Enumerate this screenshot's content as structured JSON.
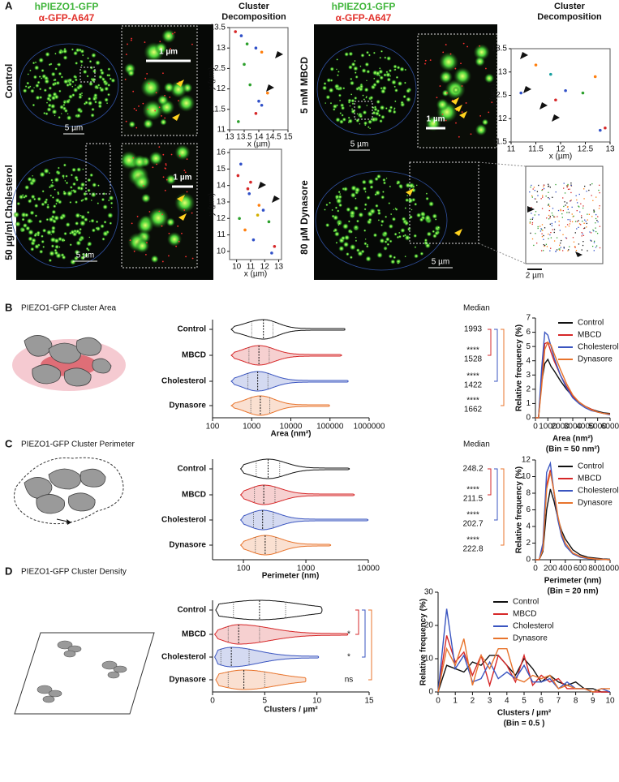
{
  "panel_a": {
    "label": "A",
    "stain_1": "hPIEZO1-GFP",
    "stain_2": "α-GFP-A647",
    "decomp_title": "Cluster Decomposition",
    "conditions": [
      "Control",
      "50 µg/ml Cholesterol",
      "5 mM MBCD",
      "80 µM Dynasore"
    ],
    "scale_5": "5 µm",
    "scale_1": "1 µm",
    "scale_2": "2 µm"
  },
  "chart_data": [
    {
      "type": "scatter",
      "xlabel": "x (µm)",
      "ylabel": "y (µm)",
      "xlim": [
        13,
        15
      ],
      "ylim": [
        11,
        13.5
      ],
      "xticks": [
        13,
        13.5,
        14,
        14.5,
        15
      ],
      "yticks": [
        11,
        11.5,
        12,
        12.5,
        13,
        13.5
      ],
      "x": [
        13.2,
        13.4,
        13.6,
        13.9,
        14.1,
        13.5,
        13.7,
        14.0,
        14.1,
        13.9,
        14.3,
        13.3
      ],
      "y": [
        13.4,
        13.3,
        13.1,
        13.0,
        12.9,
        12.6,
        12.1,
        11.7,
        11.6,
        11.4,
        11.9,
        11.2
      ],
      "colors": [
        "#d62728",
        "#3050c8",
        "#2ca02c",
        "#3050c8",
        "#ff7f0e",
        "#2ca02c",
        "#2ca02c",
        "#3050c8",
        "#3050c8",
        "#d62728",
        "#ff7f0e",
        "#2ca02c"
      ]
    },
    {
      "type": "scatter",
      "xlabel": "x (µm)",
      "ylabel": "y (µm)",
      "xlim": [
        9.5,
        13.2
      ],
      "ylim": [
        9.5,
        16.2
      ],
      "xticks": [
        10,
        11,
        12,
        13
      ],
      "yticks": [
        10,
        11,
        12,
        13,
        14,
        15,
        16
      ],
      "x": [
        10.3,
        10.1,
        11.0,
        10.8,
        10.9,
        11.6,
        11.9,
        11.5,
        10.6,
        11.2,
        12.3,
        12.5,
        12.7,
        10.2
      ],
      "y": [
        15.3,
        14.6,
        14.2,
        13.8,
        13.5,
        12.8,
        12.5,
        12.2,
        11.3,
        10.7,
        11.8,
        9.9,
        10.3,
        12.0
      ],
      "colors": [
        "#3050c8",
        "#d62728",
        "#d62728",
        "#d62728",
        "#3050c8",
        "#ff7f0e",
        "#3050c8",
        "#d4b000",
        "#ff7f0e",
        "#3050c8",
        "#2ca02c",
        "#3050c8",
        "#d62728",
        "#2ca02c"
      ]
    },
    {
      "type": "scatter",
      "xlabel": "x (µm)",
      "ylabel": "y (µm)",
      "xlim": [
        11,
        13
      ],
      "ylim": [
        11.5,
        13.5
      ],
      "xticks": [
        11,
        11.5,
        12,
        12.5,
        13
      ],
      "yticks": [
        11.5,
        12,
        12.5,
        13,
        13.5
      ],
      "x": [
        11.5,
        11.8,
        11.2,
        12.7,
        12.1,
        12.45,
        11.9,
        12.9,
        12.8
      ],
      "y": [
        13.15,
        12.95,
        12.55,
        12.9,
        12.6,
        12.55,
        12.4,
        11.8,
        11.75
      ],
      "colors": [
        "#ff7f0e",
        "#17a0a0",
        "#3050c8",
        "#ff7f0e",
        "#3050c8",
        "#2ca02c",
        "#d62728",
        "#d62728",
        "#3050c8"
      ]
    },
    {
      "type": "violin",
      "panel_label": "B",
      "title": "PIEZO1-GFP Cluster Area",
      "xlabel": "Area (nm²)",
      "xscale": "log",
      "xlim": [
        100,
        1000000
      ],
      "xticks": [
        100,
        1000,
        10000,
        100000,
        1000000
      ],
      "categories": [
        "Control",
        "MBCD",
        "Cholesterol",
        "Dynasore"
      ],
      "colors": [
        "#111111",
        "#d62728",
        "#3a55c0",
        "#e8742c"
      ],
      "stats": {
        "min": [
          300,
          300,
          300,
          300
        ],
        "q1": [
          1000,
          850,
          800,
          950
        ],
        "median": [
          1993,
          1528,
          1422,
          1662
        ],
        "q3": [
          3500,
          2800,
          2600,
          2900
        ],
        "max": [
          250000,
          200000,
          300000,
          100000
        ]
      },
      "median_heading": "Median",
      "significance": [
        null,
        "****",
        "****",
        "****"
      ]
    },
    {
      "type": "violin",
      "panel_label": "C",
      "title": "PIEZO1-GFP  Cluster Perimeter",
      "xlabel": "Perimeter (nm)",
      "xscale": "log",
      "xlim": [
        32,
        10000
      ],
      "xticks": [
        100,
        1000,
        10000
      ],
      "categories": [
        "Control",
        "MBCD",
        "Cholesterol",
        "Dynasore"
      ],
      "colors": [
        "#111111",
        "#d62728",
        "#3a55c0",
        "#e8742c"
      ],
      "stats": {
        "min": [
          90,
          90,
          90,
          90
        ],
        "q1": [
          160,
          150,
          145,
          155
        ],
        "median": [
          248.2,
          211.5,
          202.7,
          222.8
        ],
        "q3": [
          380,
          320,
          300,
          330
        ],
        "max": [
          5000,
          6000,
          10000,
          2500
        ]
      },
      "median_heading": "Median",
      "significance": [
        null,
        "****",
        "****",
        "****"
      ]
    },
    {
      "type": "violin",
      "panel_label": "D",
      "title": "PIEZO1-GFP Cluster Density",
      "xlabel": "Clusters / µm²",
      "xscale": "linear",
      "xlim": [
        0,
        15
      ],
      "xticks": [
        0,
        5,
        10,
        15
      ],
      "categories": [
        "Control",
        "MBCD",
        "Cholesterol",
        "Dynasore"
      ],
      "colors": [
        "#111111",
        "#d62728",
        "#3a55c0",
        "#e8742c"
      ],
      "stats": {
        "min": [
          0.3,
          0.2,
          0.2,
          0.3
        ],
        "q1": [
          2,
          1.5,
          0.8,
          1.5
        ],
        "median": [
          4.5,
          2.5,
          1.8,
          3
        ],
        "q3": [
          7,
          4.5,
          3.5,
          5
        ],
        "max": [
          10.5,
          13,
          10.2,
          9
        ]
      },
      "significance": [
        null,
        "*",
        "*",
        "ns"
      ]
    },
    {
      "type": "line",
      "xlabel": "Area (nm²)",
      "xlabel_2": "(Bin = 50 nm²)",
      "ylabel": "Relative frequency (%)",
      "xlim": [
        0,
        6000
      ],
      "ylim": [
        0,
        7
      ],
      "xticks": [
        0,
        1000,
        2000,
        3000,
        4000,
        5000,
        6000
      ],
      "yticks": [
        0,
        1,
        2,
        3,
        4,
        5,
        6,
        7
      ],
      "x": [
        0,
        250,
        500,
        750,
        1000,
        1250,
        1500,
        2000,
        2500,
        3000,
        3500,
        4000,
        4500,
        5000,
        5500,
        6000
      ],
      "series": [
        {
          "name": "Control",
          "color": "#111111",
          "values": [
            0,
            0,
            2.5,
            3.8,
            4.1,
            3.6,
            3.3,
            2.6,
            2.0,
            1.5,
            1.1,
            0.8,
            0.6,
            0.45,
            0.35,
            0.3
          ]
        },
        {
          "name": "MBCD",
          "color": "#d62728",
          "values": [
            0,
            0,
            3,
            5.2,
            5.3,
            4.6,
            4,
            3,
            2.2,
            1.5,
            1.1,
            0.8,
            0.6,
            0.4,
            0.3,
            0.25
          ]
        },
        {
          "name": "Cholesterol",
          "color": "#3a55c0",
          "values": [
            0,
            0,
            3.5,
            6.0,
            5.8,
            5.0,
            4.2,
            3.0,
            2.1,
            1.4,
            1.0,
            0.7,
            0.5,
            0.4,
            0.3,
            0.2
          ]
        },
        {
          "name": "Dynasore",
          "color": "#e8742c",
          "values": [
            0,
            0,
            2.2,
            4.8,
            5.3,
            5.1,
            4.5,
            3.4,
            2.4,
            1.6,
            1.1,
            0.8,
            0.55,
            0.4,
            0.3,
            0.25
          ]
        }
      ]
    },
    {
      "type": "line",
      "xlabel": "Perimeter (nm)",
      "xlabel_2": "(Bin = 20 nm)",
      "ylabel": "Relative frequency (%)",
      "xlim": [
        0,
        1000
      ],
      "ylim": [
        0,
        12
      ],
      "xticks": [
        0,
        200,
        400,
        600,
        800,
        1000
      ],
      "yticks": [
        0,
        2,
        4,
        6,
        8,
        10,
        12
      ],
      "x": [
        0,
        50,
        100,
        150,
        200,
        250,
        300,
        350,
        400,
        500,
        600,
        700,
        800,
        900,
        1000
      ],
      "series": [
        {
          "name": "Control",
          "color": "#111111",
          "values": [
            0,
            0,
            1,
            6,
            8.5,
            7,
            5,
            3.5,
            2.5,
            1.2,
            0.6,
            0.3,
            0.2,
            0.1,
            0.05
          ]
        },
        {
          "name": "MBCD",
          "color": "#d62728",
          "values": [
            0,
            0,
            1.5,
            9,
            10.8,
            8,
            5,
            3,
            2,
            0.8,
            0.4,
            0.2,
            0.1,
            0.05,
            0
          ]
        },
        {
          "name": "Cholesterol",
          "color": "#3a55c0",
          "values": [
            0,
            0,
            2,
            10.5,
            11.6,
            8,
            4.8,
            2.8,
            1.7,
            0.7,
            0.3,
            0.15,
            0.1,
            0.05,
            0
          ]
        },
        {
          "name": "Dynasore",
          "color": "#e8742c",
          "values": [
            0,
            0,
            1.2,
            8.5,
            10.5,
            8.2,
            5.3,
            3.2,
            2,
            0.8,
            0.4,
            0.2,
            0.1,
            0.05,
            0
          ]
        }
      ]
    },
    {
      "type": "line",
      "xlabel": "Clusters / µm²",
      "xlabel_2": "(Bin = 0.5 )",
      "ylabel": "Relative frequency (%)",
      "xlim": [
        0,
        10
      ],
      "ylim": [
        0,
        30
      ],
      "xticks": [
        0,
        1,
        2,
        3,
        4,
        5,
        6,
        7,
        8,
        9,
        10
      ],
      "yticks": [
        0,
        10,
        20,
        30
      ],
      "x": [
        0,
        0.5,
        1,
        1.5,
        2,
        2.5,
        3,
        3.5,
        4,
        4.5,
        5,
        5.5,
        6,
        6.5,
        7,
        7.5,
        8,
        8.5,
        9,
        9.5,
        10
      ],
      "series": [
        {
          "name": "Control",
          "color": "#111111",
          "values": [
            0,
            8,
            7,
            6,
            9,
            8,
            11,
            11,
            8,
            5,
            10,
            7,
            3,
            5,
            3,
            2,
            3,
            1,
            1,
            0,
            0
          ]
        },
        {
          "name": "MBCD",
          "color": "#d62728",
          "values": [
            0,
            17,
            9,
            12,
            5,
            11,
            2,
            11,
            8,
            3,
            11,
            2,
            5,
            3,
            4,
            1,
            1,
            1,
            0,
            0,
            0
          ]
        },
        {
          "name": "Cholesterol",
          "color": "#3a55c0",
          "values": [
            0,
            25,
            7,
            11,
            3,
            4,
            9,
            4,
            6,
            4,
            8,
            3,
            3,
            4,
            1,
            3,
            1,
            1,
            0,
            1,
            0
          ]
        },
        {
          "name": "Dynasore",
          "color": "#e8742c",
          "values": [
            0,
            13,
            8,
            16,
            2,
            11,
            7,
            13,
            13,
            4,
            3,
            5,
            4,
            5,
            1,
            2,
            1,
            1,
            0,
            1,
            1
          ]
        }
      ]
    }
  ]
}
